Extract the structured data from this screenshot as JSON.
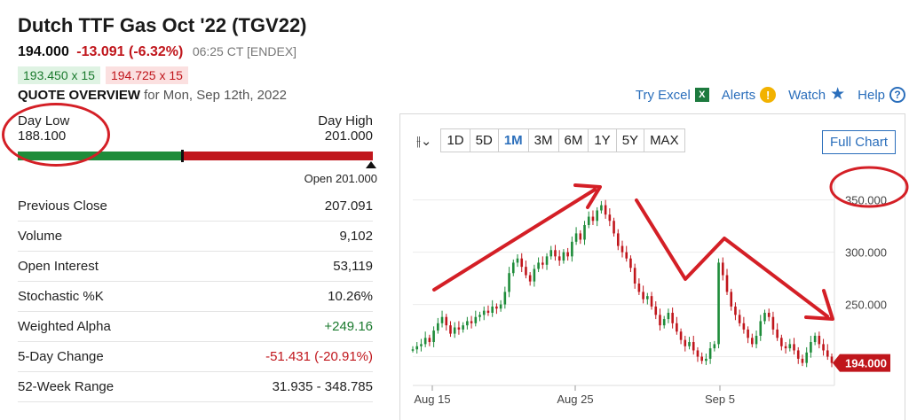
{
  "header": {
    "title": "Dutch TTF Gas Oct '22 (TGV22)",
    "last": "194.000",
    "change": "-13.091 (-6.32%)",
    "meta": "06:25 CT [ENDEX]",
    "bid": "193.450 x 15",
    "ask": "194.725 x 15",
    "overview_label": "QUOTE OVERVIEW",
    "overview_date": "for Mon, Sep 12th, 2022"
  },
  "links": {
    "excel": "Try Excel",
    "excel_icon": "X",
    "alerts": "Alerts",
    "alerts_icon": "!",
    "watch": "Watch",
    "watch_icon": "★",
    "help": "Help",
    "help_icon": "?"
  },
  "range": {
    "low_label": "Day Low",
    "low": "188.100",
    "high_label": "Day High",
    "high": "201.000",
    "open": "Open 201.000",
    "position": 0.46
  },
  "stats": [
    {
      "label": "Previous Close",
      "value": "207.091",
      "tone": ""
    },
    {
      "label": "Volume",
      "value": "9,102",
      "tone": ""
    },
    {
      "label": "Open Interest",
      "value": "53,119",
      "tone": ""
    },
    {
      "label": "Stochastic %K",
      "value": "10.26%",
      "tone": ""
    },
    {
      "label": "Weighted Alpha",
      "value": "+249.16",
      "tone": "pos"
    },
    {
      "label": "5-Day Change",
      "value": "-51.431 (-20.91%)",
      "tone": "neg"
    },
    {
      "label": "52-Week Range",
      "value": "31.935 - 348.785",
      "tone": ""
    }
  ],
  "toolbar": {
    "draw_icon": "⫲⌄",
    "periods": [
      "1D",
      "5D",
      "1M",
      "3M",
      "6M",
      "1Y",
      "5Y",
      "MAX"
    ],
    "active": "1M",
    "full_chart": "Full Chart"
  },
  "chart_data": {
    "type": "candlestick",
    "x_ticks": [
      "Aug 15",
      "Aug 25",
      "Sep 5"
    ],
    "y_ticks": [
      "350.000",
      "300.000",
      "250.000"
    ],
    "y_tick_values": [
      350,
      300,
      250
    ],
    "ylim": [
      175,
      365
    ],
    "last_price_label": "194.000",
    "last_price": 194,
    "colors": {
      "up": "#1e8c3a",
      "down": "#c0161c",
      "annot": "#d41f26"
    },
    "close_series": [
      207,
      210,
      212,
      218,
      214,
      225,
      232,
      238,
      230,
      222,
      228,
      226,
      230,
      234,
      232,
      238,
      240,
      244,
      242,
      248,
      246,
      250,
      262,
      280,
      290,
      294,
      286,
      278,
      272,
      284,
      290,
      288,
      296,
      302,
      296,
      292,
      300,
      296,
      310,
      318,
      312,
      326,
      334,
      330,
      340,
      345,
      336,
      330,
      318,
      306,
      300,
      294,
      285,
      270,
      262,
      255,
      258,
      248,
      240,
      230,
      236,
      242,
      232,
      224,
      216,
      210,
      214,
      206,
      200,
      196,
      198,
      208,
      212,
      290,
      278,
      262,
      248,
      240,
      232,
      226,
      218,
      212,
      220,
      234,
      242,
      238,
      226,
      218,
      210,
      208,
      212,
      206,
      198,
      194,
      204,
      214,
      220,
      212,
      206,
      200,
      194
    ]
  }
}
